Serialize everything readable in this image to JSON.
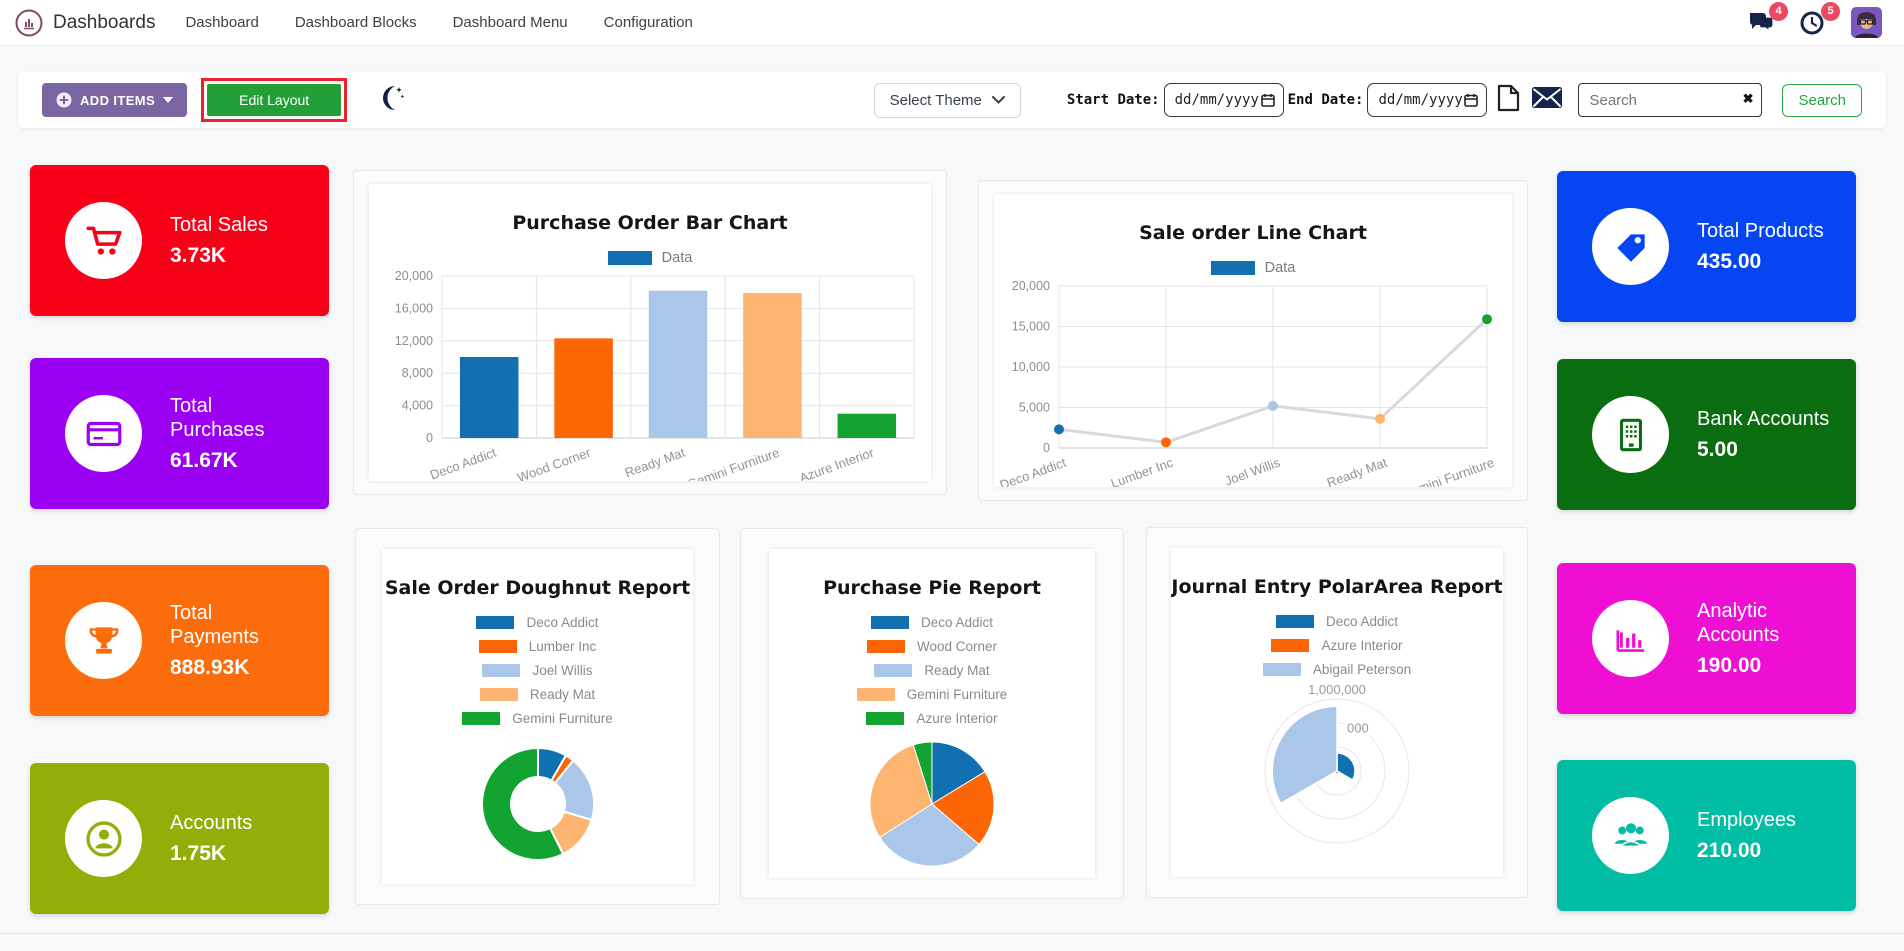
{
  "navbar": {
    "brand": "Dashboards",
    "menu_items": [
      "Dashboard",
      "Dashboard Blocks",
      "Dashboard Menu",
      "Configuration"
    ],
    "chat_badge": "4",
    "activity_badge": "5"
  },
  "toolbar": {
    "add_items_label": "ADD ITEMS",
    "edit_layout_label": "Edit Layout",
    "select_theme_label": "Select Theme",
    "start_date_label": "Start Date:",
    "end_date_label": "End Date:",
    "date_placeholder": "dd/mm/yyyy",
    "search_placeholder": "Search",
    "clear_icon": "✖",
    "search_button_label": "Search",
    "annotation_color": "#ee2226",
    "add_items_color": "#7a66a3",
    "edit_layout_color": "#21a038"
  },
  "kpi_cards_left": [
    {
      "label": "Total Sales",
      "value": "3.73K",
      "color": "#f90019",
      "icon": "cart-icon"
    },
    {
      "label": "Total\nPurchases",
      "value": "61.67K",
      "color": "#9b00f2",
      "icon": "credit-card-icon"
    },
    {
      "label": "Total\nPayments",
      "value": "888.93K",
      "color": "#fb6c0c",
      "icon": "trophy-icon"
    },
    {
      "label": "Accounts",
      "value": "1.75K",
      "color": "#93ae09",
      "icon": "person-icon"
    }
  ],
  "kpi_cards_right": [
    {
      "label": "Total Products",
      "value": "435.00",
      "color": "#0545f2",
      "icon": "tag-icon"
    },
    {
      "label": "Bank Accounts",
      "value": "5.00",
      "color": "#0a6d10",
      "icon": "building-icon"
    },
    {
      "label": "Analytic\nAccounts",
      "value": "190.00",
      "color": "#ef0fd4",
      "icon": "bar-chart-icon"
    },
    {
      "label": "Employees",
      "value": "210.00",
      "color": "#00bda4",
      "icon": "people-icon"
    }
  ],
  "chart_data": [
    {
      "type": "bar",
      "title": "Purchase Order Bar Chart",
      "legend": [
        "Data"
      ],
      "legend_position": "top",
      "categories": [
        "Deco Addict",
        "Wood Corner",
        "Ready Mat",
        "Gemini Furniture",
        "Azure Interior"
      ],
      "values": [
        10000,
        12300,
        18200,
        17900,
        3000
      ],
      "colors": [
        "#1170b0",
        "#fd6604",
        "#aac6e8",
        "#fdb571",
        "#13a331"
      ],
      "ylim": [
        0,
        20000
      ],
      "yticks": [
        0,
        4000,
        8000,
        12000,
        16000,
        20000
      ],
      "ytick_labels": [
        "0",
        "4,000",
        "8,000",
        "12,000",
        "16,000",
        "20,000"
      ],
      "grid": true
    },
    {
      "type": "line",
      "title": "Sale order Line Chart",
      "legend": [
        "Data"
      ],
      "legend_position": "top",
      "categories": [
        "Deco Addict",
        "Lumber Inc",
        "Joel Willis",
        "Ready Mat",
        "Gemini Furniture"
      ],
      "values": [
        2300,
        700,
        5200,
        3600,
        15900
      ],
      "point_colors": [
        "#1170b0",
        "#fd6604",
        "#aac6e8",
        "#fdb571",
        "#13a331"
      ],
      "line_color": "#d9d9d9",
      "ylim": [
        0,
        20000
      ],
      "yticks": [
        0,
        5000,
        10000,
        15000,
        20000
      ],
      "ytick_labels": [
        "0",
        "5,000",
        "10,000",
        "15,000",
        "20,000"
      ],
      "grid": true
    },
    {
      "type": "doughnut",
      "title": "Sale Order Doughnut Report",
      "labels": [
        "Deco Addict",
        "Lumber Inc",
        "Joel Willis",
        "Ready Mat",
        "Gemini Furniture"
      ],
      "values": [
        2300,
        700,
        5200,
        3600,
        15900
      ],
      "colors": [
        "#1170b0",
        "#fd6604",
        "#aac6e8",
        "#fdb571",
        "#13a331"
      ],
      "legend_position": "top"
    },
    {
      "type": "pie",
      "title": "Purchase Pie Report",
      "labels": [
        "Deco Addict",
        "Wood Corner",
        "Ready Mat",
        "Gemini Furniture",
        "Azure Interior"
      ],
      "values": [
        10000,
        12300,
        18200,
        17900,
        3000
      ],
      "colors": [
        "#1170b0",
        "#fd6604",
        "#aac6e8",
        "#fdb571",
        "#13a331"
      ],
      "legend_position": "top"
    },
    {
      "type": "polarArea",
      "title": "Journal Entry PolarArea Report",
      "labels": [
        "Deco Addict",
        "Azure Interior",
        "Abigail Peterson"
      ],
      "values": [
        250000,
        40000,
        900000
      ],
      "colors": [
        "#1170b0",
        "#fd6604",
        "#aac6e8"
      ],
      "rmax": 1000000,
      "rtick_labels": [
        "1,000,000",
        "000"
      ],
      "legend_position": "top"
    }
  ]
}
